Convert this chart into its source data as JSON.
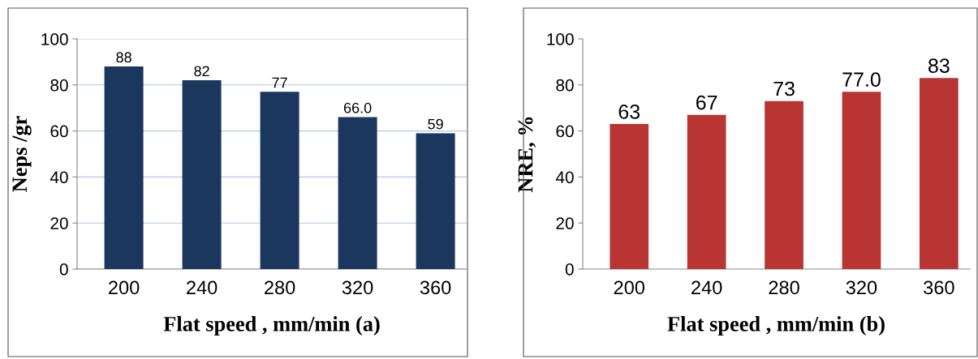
{
  "chart_data": [
    {
      "type": "bar",
      "categories": [
        "200",
        "240",
        "280",
        "320",
        "360"
      ],
      "series": [
        {
          "color": "#1c375e",
          "values": [
            88,
            82,
            77,
            66,
            59
          ]
        }
      ],
      "value_labels": [
        "88",
        "82",
        "77",
        "66.0",
        "59"
      ],
      "ylim": [
        0,
        100
      ],
      "yticks": [
        0,
        20,
        40,
        60,
        80,
        100
      ],
      "ylabel": "Neps /gr",
      "xlabel": "Flat speed , mm/min (a)",
      "grid": "y"
    },
    {
      "type": "bar",
      "categories": [
        "200",
        "240",
        "280",
        "320",
        "360"
      ],
      "series": [
        {
          "color": "#b83534",
          "values": [
            63,
            67,
            73,
            77,
            83
          ]
        }
      ],
      "value_labels": [
        "63",
        "67",
        "73",
        "77.0",
        "83"
      ],
      "ylim": [
        0,
        100
      ],
      "yticks": [
        0,
        20,
        40,
        60,
        80,
        100
      ],
      "ylabel": "NRE, %",
      "xlabel": "Flat speed , mm/min (b)",
      "grid": false
    }
  ]
}
